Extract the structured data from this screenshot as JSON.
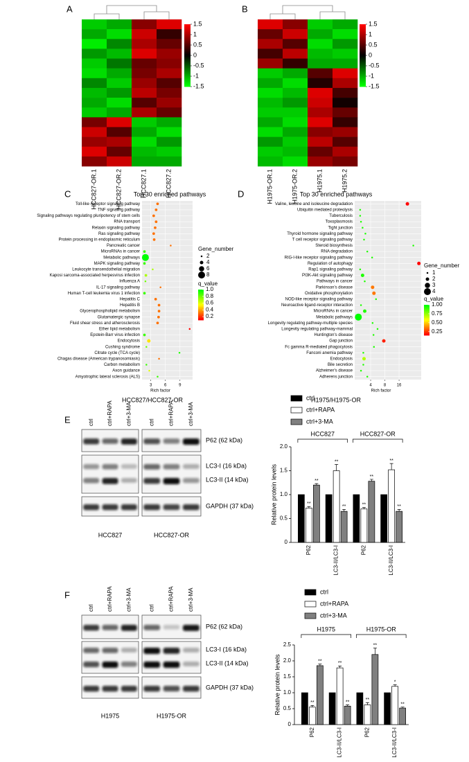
{
  "chart_data": [
    {
      "type": "heatmap",
      "panel": "A",
      "columns": [
        "HCC827-OR.1",
        "HCC827-OR.2",
        "HCC827.1",
        "HCC827.2"
      ],
      "values": [
        [
          -1.2,
          -1.0,
          0.8,
          1.3
        ],
        [
          -1.0,
          -1.3,
          1.2,
          0.3
        ],
        [
          -1.4,
          -0.8,
          1.0,
          0.6
        ],
        [
          -0.9,
          -1.1,
          1.3,
          0.9
        ],
        [
          -1.2,
          -0.7,
          0.6,
          0.8
        ],
        [
          -1.3,
          -1.0,
          0.7,
          1.0
        ],
        [
          -0.8,
          -1.2,
          0.9,
          0.5
        ],
        [
          -1.1,
          -0.9,
          1.1,
          0.7
        ],
        [
          -1.0,
          -1.3,
          0.5,
          0.9
        ],
        [
          -1.2,
          -1.0,
          1.0,
          0.6
        ],
        [
          0.7,
          1.3,
          -1.2,
          -1.0
        ],
        [
          1.2,
          0.5,
          -1.0,
          -1.3
        ],
        [
          0.9,
          1.0,
          -1.3,
          -0.9
        ],
        [
          1.3,
          0.6,
          -1.1,
          -1.2
        ],
        [
          0.8,
          1.2,
          -1.0,
          -1.0
        ]
      ],
      "clim": [
        -1.5,
        1.5
      ],
      "cticks": [
        1.5,
        1,
        0.5,
        0,
        -0.5,
        -1,
        -1.5
      ],
      "colors": [
        "#00ff00",
        "#000000",
        "#ff0000"
      ]
    },
    {
      "type": "heatmap",
      "panel": "B",
      "columns": [
        "H1975-OR.1",
        "H1975-OR.2",
        "H1975.1",
        "H1975.2"
      ],
      "values": [
        [
          1.3,
          0.8,
          -1.2,
          -1.0
        ],
        [
          0.6,
          1.2,
          -1.0,
          -1.3
        ],
        [
          1.0,
          0.5,
          -1.3,
          -0.9
        ],
        [
          0.4,
          1.1,
          -1.1,
          -1.2
        ],
        [
          0.9,
          0.3,
          -1.0,
          -1.0
        ],
        [
          -1.2,
          -1.0,
          0.5,
          1.3
        ],
        [
          -1.0,
          -1.3,
          0.2,
          1.0
        ],
        [
          -1.3,
          -1.1,
          1.3,
          0.4
        ],
        [
          -1.1,
          -0.9,
          1.2,
          0.1
        ],
        [
          -1.2,
          -1.2,
          1.0,
          0.6
        ],
        [
          -1.0,
          -1.3,
          1.3,
          0.3
        ],
        [
          -1.3,
          -1.0,
          0.8,
          0.9
        ],
        [
          -0.9,
          -1.2,
          1.1,
          0.5
        ],
        [
          -1.2,
          -1.1,
          0.6,
          1.0
        ],
        [
          -1.1,
          -1.3,
          0.9,
          0.7
        ]
      ],
      "clim": [
        -1.5,
        1.5
      ],
      "cticks": [
        1.5,
        1,
        0.5,
        0,
        -0.5,
        -1,
        -1.5
      ],
      "colors": [
        "#00ff00",
        "#000000",
        "#ff0000"
      ]
    },
    {
      "type": "dot",
      "panel": "C",
      "title": "Top 30 enriched pathways",
      "categories": [
        "Toll-like receptor signaling pathway",
        "TNF signaling pathway",
        "Signaling pathways regulating pluripotency of stem cells",
        "RNA transport",
        "Relaxin signaling pathway",
        "Ras signaling pathway",
        "Protein processing in endoplasmic reticulum",
        "Pancreatic cancer",
        "MicroRNAs in cancer",
        "Metabolic pathways",
        "MAPK signaling pathway",
        "Leukocyte transendothelial migration",
        "Kaposi sarcoma-associated herpesvirus infection",
        "Influenza A",
        "IL-17 signaling pathway",
        "Human T-cell leukemia virus 1 infection",
        "Hepatitis C",
        "Hepatitis B",
        "Glycerophospholipid metabolism",
        "Glutamatergic synapse",
        "Fluid shear stress and atherosclerosis",
        "Ether lipid metabolism",
        "Epstein-Barr virus infection",
        "Endocytosis",
        "Cushing syndrome",
        "Citrate cycle (TCA cycle)",
        "Chagas disease (American trypanosomiasis)",
        "Carbon metabolism",
        "Axon guidance",
        "Amyotrophic lateral sclerosis (ALS)"
      ],
      "values": [
        4.4,
        4.1,
        3.6,
        4.1,
        3.9,
        3.6,
        3.7,
        7.1,
        1.7,
        1.9,
        1.7,
        3.4,
        2.0,
        1.9,
        5.0,
        1.7,
        4.0,
        4.7,
        4.7,
        4.6,
        4.4,
        11.0,
        1.7,
        2.6,
        2.1,
        8.9,
        4.7,
        2.1,
        2.7,
        4.4
      ],
      "gene_number": [
        3,
        3,
        3,
        3,
        3,
        3,
        3,
        2,
        3,
        8,
        3,
        2,
        3,
        2,
        2,
        3,
        3,
        3,
        3,
        3,
        3,
        2,
        3,
        4,
        2,
        2,
        2,
        2,
        2,
        2
      ],
      "q_value": [
        0.3,
        0.3,
        0.3,
        0.3,
        0.3,
        0.3,
        0.3,
        0.3,
        0.9,
        1.0,
        0.9,
        0.7,
        0.7,
        0.8,
        0.3,
        0.9,
        0.3,
        0.3,
        0.3,
        0.3,
        0.3,
        0.1,
        0.9,
        0.5,
        0.8,
        0.95,
        0.3,
        0.9,
        0.6,
        0.9
      ],
      "xlabel": "Rich factor",
      "xlim": [
        1.2,
        11.6
      ],
      "xticks": [
        3,
        6,
        9
      ],
      "xscale": "linear",
      "size_legend": {
        "title": "Gene_number",
        "values": [
          2,
          4,
          6,
          8
        ]
      },
      "color_legend": {
        "title": "q_value",
        "lim": [
          0.1,
          1.0
        ],
        "ticks": [
          {
            "value": 1,
            "label": "1.0"
          },
          0.8,
          0.6,
          0.4,
          0.2
        ],
        "colors": [
          "#ff0000",
          "#ffff00",
          "#00ff00"
        ]
      },
      "caption": "HCC827/HCC827-OR"
    },
    {
      "type": "dot",
      "panel": "D",
      "title": "Top 30 enriched pathways",
      "categories": [
        "Valine, leucine and isoleucine degradation",
        "Ubiquitin mediated proteolysis",
        "Tuberculosis",
        "Toxoplasmosis",
        "Tight junction",
        "Thyroid hormone signaling pathway",
        "T cell receptor signaling pathway",
        "Steroid biosynthesis",
        "RNA degradation",
        "RIG-I-like receptor signaling pathway",
        "Regulation of autophagy",
        "Rap1 signaling pathway",
        "PI3K-Akt signaling pathway",
        "Pathways in cancer",
        "Parkinson's disease",
        "Oxidative phosphorylation",
        "NOD-like receptor signaling pathway",
        "Neuroactive ligand-receptor interaction",
        "MicroRNAs in cancer",
        "Metabolic pathways",
        "Longevity regulating pathway-multiple species",
        "Longevity regulating pathway-mammal",
        "Huntington's disease",
        "Gap junction",
        "Fc gamma R-mediated phagocytosis",
        "Fanconi anemia pathway",
        "Endocytosis",
        "Bile secretion",
        "Alzheimer's disease",
        "Adherens junction"
      ],
      "values": [
        24,
        2.4,
        2.4,
        2.5,
        2.7,
        3.1,
        2.9,
        32,
        3.4,
        4.3,
        42,
        2.4,
        2.7,
        3.0,
        4.4,
        4.7,
        5.2,
        2.5,
        3.0,
        2.2,
        4.4,
        5.6,
        4.6,
        7.6,
        4.7,
        2.8,
        2.9,
        2.8,
        2.5,
        3.4
      ],
      "gene_number": [
        2,
        1,
        1,
        1,
        1,
        1,
        1,
        1,
        1,
        1,
        2,
        1,
        2,
        1,
        2,
        2,
        1,
        1,
        2,
        4,
        1,
        1,
        1,
        2,
        1,
        1,
        2,
        1,
        1,
        1
      ],
      "q_value": [
        0.1,
        0.95,
        0.95,
        0.95,
        0.95,
        0.95,
        0.95,
        0.95,
        0.95,
        0.95,
        0.1,
        0.95,
        0.95,
        0.95,
        0.35,
        0.35,
        0.95,
        0.95,
        0.95,
        1.0,
        0.95,
        0.95,
        0.95,
        0.2,
        0.95,
        0.95,
        0.7,
        0.95,
        0.95,
        0.95
      ],
      "xlabel": "Rich factor",
      "xlim": [
        1.84,
        47
      ],
      "xticks": [
        4,
        8,
        16
      ],
      "xscale": "log",
      "size_legend": {
        "title": "Gene_number",
        "values": [
          1,
          2,
          3,
          4
        ]
      },
      "color_legend": {
        "title": "q_value",
        "lim": [
          0.15,
          1.0
        ],
        "ticks": [
          {
            "value": 1,
            "label": "1.00"
          },
          0.75,
          {
            "value": 0.5,
            "label": "0.50"
          },
          0.25
        ],
        "colors": [
          "#ff0000",
          "#ffff00",
          "#00ff00"
        ]
      },
      "caption": "H1975/H1975-OR"
    },
    {
      "type": "bar",
      "categories": [
        "P62",
        "LC3-II/LC3-I",
        "P62",
        "LC3-II/LC3-I"
      ],
      "group_labels": [
        "HCC827",
        "HCC827-OR"
      ],
      "ylabel": "Relative protein levels",
      "ylim": [
        0,
        2
      ],
      "yticks": [
        0,
        0.5,
        {
          "value": 1,
          "label": "1.0"
        },
        1.5,
        {
          "value": 2,
          "label": "2.0"
        }
      ],
      "series": [
        {
          "name": "ctrl",
          "color": "#000000",
          "values": [
            1,
            1,
            1,
            1
          ]
        },
        {
          "name": "ctrl+RAPA",
          "color": "#ffffff",
          "values": [
            0.72,
            1.5,
            0.7,
            1.52
          ],
          "errors": [
            0.03,
            0.13,
            0.03,
            0.13
          ],
          "annotations": [
            "**",
            "**",
            "**",
            "**"
          ]
        },
        {
          "name": "ctrl+3-MA",
          "color": "#808080",
          "values": [
            1.2,
            0.65,
            1.28,
            0.65
          ],
          "errors": [
            0.03,
            0.04,
            0.04,
            0.04
          ],
          "annotations": [
            "**",
            "**",
            "**",
            "**"
          ]
        }
      ]
    },
    {
      "type": "bar",
      "categories": [
        "P62",
        "LC3-II/LC3-I",
        "P62",
        "LC3-II/LC3-I"
      ],
      "group_labels": [
        "H1975",
        "H1975-OR"
      ],
      "ylabel": "Relative protein levels",
      "ylim": [
        0,
        2.5
      ],
      "yticks": [
        0,
        0.5,
        {
          "value": 1,
          "label": "1.0"
        },
        1.5,
        {
          "value": 2,
          "label": "2.0"
        },
        2.5
      ],
      "series": [
        {
          "name": "ctrl",
          "color": "#000000",
          "values": [
            1,
            1,
            1,
            1
          ]
        },
        {
          "name": "ctrl+RAPA",
          "color": "#ffffff",
          "values": [
            0.55,
            1.78,
            0.62,
            1.2
          ],
          "errors": [
            0.05,
            0.06,
            0.07,
            0.05
          ],
          "annotations": [
            "**",
            "**",
            "**",
            "*"
          ]
        },
        {
          "name": "ctrl+3-MA",
          "color": "#808080",
          "values": [
            1.85,
            0.58,
            2.2,
            0.52
          ],
          "errors": [
            0.05,
            0.04,
            0.2,
            0.03
          ],
          "annotations": [
            "**",
            "**",
            "**",
            "**"
          ]
        }
      ]
    }
  ],
  "blots": [
    {
      "panel": "E",
      "lanes": [
        "ctrl",
        "ctrl+RAPA",
        "ctrl+3-MA"
      ],
      "groups": [
        "HCC827",
        "HCC827-OR"
      ],
      "bands": [
        "P62 (62 kDa)",
        "LC3-I (16 kDa)",
        "LC3-II (14 kDa)",
        "GAPDH (37 kDa)"
      ]
    },
    {
      "panel": "F",
      "lanes": [
        "ctrl",
        "ctrl+RAPA",
        "ctrl+3-MA"
      ],
      "groups": [
        "H1975",
        "H1975-OR"
      ],
      "bands": [
        "P62 (62 kDa)",
        "LC3-I (16 kDa)",
        "LC3-II (14 kDa)",
        "GAPDH (37 kDa)"
      ]
    }
  ]
}
